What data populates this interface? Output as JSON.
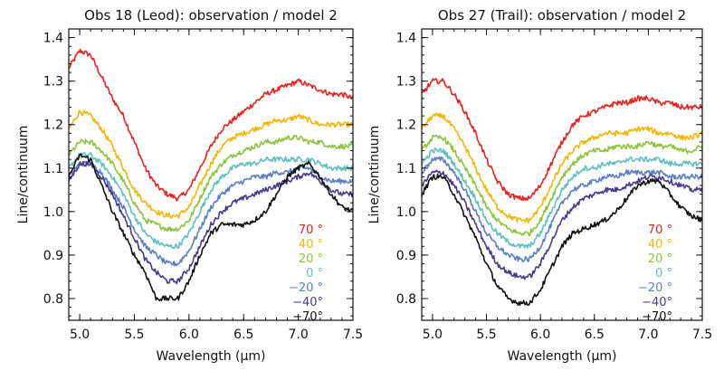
{
  "chart_data": [
    {
      "type": "line",
      "title": "Obs 18 (Leod): observation / model 2",
      "xlabel": "Wavelength (μm)",
      "ylabel": "Line/continuum",
      "xlim": [
        4.9,
        7.5
      ],
      "ylim": [
        0.75,
        1.42
      ],
      "xticks": [
        "5.0",
        "5.5",
        "6.0",
        "6.5",
        "7.0",
        "7.5"
      ],
      "yticks": [
        "0.8",
        "0.9",
        "1.0",
        "1.1",
        "1.2",
        "1.3",
        "1.4"
      ],
      "legend_position": "lower-right",
      "x": [
        4.9,
        5.0,
        5.1,
        5.2,
        5.3,
        5.4,
        5.5,
        5.6,
        5.7,
        5.8,
        5.9,
        6.0,
        6.1,
        6.2,
        6.3,
        6.4,
        6.5,
        6.6,
        6.7,
        6.8,
        6.9,
        7.0,
        7.1,
        7.2,
        7.3,
        7.4,
        7.5
      ],
      "series": [
        {
          "name": "70 °",
          "color": "#e8231e",
          "values": [
            1.33,
            1.37,
            1.36,
            1.31,
            1.26,
            1.22,
            1.16,
            1.1,
            1.06,
            1.04,
            1.03,
            1.05,
            1.1,
            1.15,
            1.19,
            1.21,
            1.23,
            1.25,
            1.27,
            1.28,
            1.29,
            1.3,
            1.29,
            1.28,
            1.27,
            1.27,
            1.26
          ]
        },
        {
          "name": "40 °",
          "color": "#f2b705",
          "values": [
            1.19,
            1.23,
            1.22,
            1.19,
            1.15,
            1.1,
            1.05,
            1.02,
            1.0,
            0.99,
            0.99,
            1.01,
            1.06,
            1.11,
            1.15,
            1.17,
            1.18,
            1.19,
            1.2,
            1.21,
            1.21,
            1.22,
            1.21,
            1.2,
            1.2,
            1.2,
            1.2
          ]
        },
        {
          "name": "20 °",
          "color": "#8cc43c",
          "values": [
            1.13,
            1.16,
            1.16,
            1.14,
            1.11,
            1.07,
            1.02,
            0.98,
            0.97,
            0.96,
            0.96,
            0.98,
            1.03,
            1.08,
            1.11,
            1.13,
            1.14,
            1.15,
            1.16,
            1.16,
            1.17,
            1.17,
            1.16,
            1.16,
            1.15,
            1.15,
            1.15
          ]
        },
        {
          "name": "0 °",
          "color": "#5fc0c0",
          "values": [
            1.1,
            1.13,
            1.13,
            1.11,
            1.08,
            1.04,
            0.99,
            0.95,
            0.93,
            0.92,
            0.92,
            0.95,
            1.0,
            1.05,
            1.08,
            1.1,
            1.11,
            1.11,
            1.12,
            1.12,
            1.12,
            1.12,
            1.12,
            1.11,
            1.1,
            1.1,
            1.1
          ]
        },
        {
          "name": "−20 °",
          "color": "#5b7fc4",
          "values": [
            1.08,
            1.11,
            1.11,
            1.09,
            1.05,
            1.01,
            0.96,
            0.92,
            0.9,
            0.88,
            0.88,
            0.91,
            0.96,
            1.01,
            1.04,
            1.06,
            1.07,
            1.08,
            1.08,
            1.09,
            1.09,
            1.1,
            1.1,
            1.08,
            1.07,
            1.07,
            1.07
          ]
        },
        {
          "name": "−40°",
          "color": "#4a3a8c",
          "values": [
            1.07,
            1.11,
            1.11,
            1.08,
            1.04,
            0.99,
            0.94,
            0.89,
            0.86,
            0.84,
            0.84,
            0.87,
            0.92,
            0.97,
            1.0,
            1.02,
            1.03,
            1.04,
            1.05,
            1.06,
            1.07,
            1.08,
            1.09,
            1.07,
            1.05,
            1.04,
            1.04
          ]
        },
        {
          "name": "−70°",
          "color": "#111111",
          "values": [
            1.08,
            1.13,
            1.12,
            1.06,
            1.0,
            0.95,
            0.9,
            0.86,
            0.8,
            0.8,
            0.8,
            0.84,
            0.9,
            0.95,
            0.97,
            0.97,
            0.97,
            0.98,
            1.0,
            1.04,
            1.08,
            1.1,
            1.11,
            1.08,
            1.04,
            1.01,
            1.0
          ]
        }
      ]
    },
    {
      "type": "line",
      "title": "Obs 27 (Trail): observation / model 2",
      "xlabel": "Wavelength (μm)",
      "ylabel": "Line/continuum",
      "xlim": [
        4.9,
        7.5
      ],
      "ylim": [
        0.75,
        1.42
      ],
      "xticks": [
        "5.0",
        "5.5",
        "6.0",
        "6.5",
        "7.0",
        "7.5"
      ],
      "yticks": [
        "0.8",
        "0.9",
        "1.0",
        "1.1",
        "1.2",
        "1.3",
        "1.4"
      ],
      "legend_position": "lower-right",
      "x": [
        4.9,
        5.0,
        5.1,
        5.2,
        5.3,
        5.4,
        5.5,
        5.6,
        5.7,
        5.8,
        5.9,
        6.0,
        6.1,
        6.2,
        6.3,
        6.4,
        6.5,
        6.6,
        6.7,
        6.8,
        6.9,
        7.0,
        7.1,
        7.2,
        7.3,
        7.4,
        7.5
      ],
      "series": [
        {
          "name": "70 °",
          "color": "#e8231e",
          "values": [
            1.27,
            1.3,
            1.3,
            1.27,
            1.23,
            1.18,
            1.12,
            1.07,
            1.04,
            1.03,
            1.03,
            1.06,
            1.11,
            1.16,
            1.2,
            1.22,
            1.23,
            1.24,
            1.25,
            1.25,
            1.26,
            1.26,
            1.25,
            1.25,
            1.24,
            1.24,
            1.24
          ]
        },
        {
          "name": "40 °",
          "color": "#f2b705",
          "values": [
            1.19,
            1.22,
            1.22,
            1.19,
            1.15,
            1.1,
            1.05,
            1.01,
            0.99,
            0.98,
            0.98,
            1.01,
            1.06,
            1.11,
            1.14,
            1.16,
            1.17,
            1.18,
            1.18,
            1.18,
            1.19,
            1.19,
            1.18,
            1.18,
            1.17,
            1.17,
            1.18
          ]
        },
        {
          "name": "20 °",
          "color": "#8cc43c",
          "values": [
            1.14,
            1.17,
            1.17,
            1.14,
            1.1,
            1.06,
            1.01,
            0.98,
            0.96,
            0.95,
            0.95,
            0.98,
            1.03,
            1.08,
            1.11,
            1.13,
            1.14,
            1.14,
            1.15,
            1.15,
            1.15,
            1.16,
            1.15,
            1.15,
            1.14,
            1.14,
            1.15
          ]
        },
        {
          "name": "0 °",
          "color": "#5fc0c0",
          "values": [
            1.11,
            1.14,
            1.14,
            1.11,
            1.07,
            1.03,
            0.98,
            0.95,
            0.93,
            0.92,
            0.92,
            0.95,
            1.0,
            1.05,
            1.08,
            1.1,
            1.1,
            1.11,
            1.11,
            1.12,
            1.12,
            1.12,
            1.12,
            1.11,
            1.11,
            1.11,
            1.11
          ]
        },
        {
          "name": "−20 °",
          "color": "#5b7fc4",
          "values": [
            1.09,
            1.12,
            1.12,
            1.09,
            1.05,
            1.0,
            0.95,
            0.92,
            0.9,
            0.89,
            0.89,
            0.92,
            0.97,
            1.02,
            1.05,
            1.06,
            1.07,
            1.08,
            1.08,
            1.09,
            1.09,
            1.09,
            1.09,
            1.08,
            1.08,
            1.08,
            1.08
          ]
        },
        {
          "name": "−40°",
          "color": "#4a3a8c",
          "values": [
            1.06,
            1.09,
            1.09,
            1.06,
            1.02,
            0.97,
            0.92,
            0.88,
            0.86,
            0.85,
            0.85,
            0.88,
            0.93,
            0.98,
            1.01,
            1.03,
            1.04,
            1.05,
            1.05,
            1.06,
            1.07,
            1.08,
            1.08,
            1.07,
            1.06,
            1.05,
            1.05
          ]
        },
        {
          "name": "−70°",
          "color": "#111111",
          "values": [
            1.04,
            1.08,
            1.08,
            1.04,
            0.99,
            0.94,
            0.88,
            0.83,
            0.8,
            0.79,
            0.79,
            0.82,
            0.87,
            0.92,
            0.95,
            0.96,
            0.97,
            0.98,
            1.0,
            1.03,
            1.06,
            1.07,
            1.07,
            1.04,
            1.01,
            0.99,
            0.98
          ]
        }
      ]
    }
  ]
}
